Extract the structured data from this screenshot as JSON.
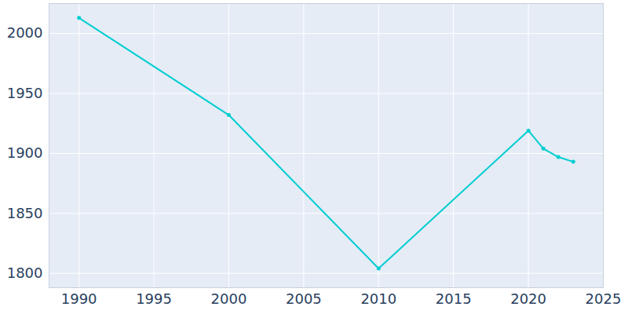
{
  "chart_data": {
    "type": "line",
    "x": [
      1990,
      2000,
      2010,
      2020,
      2021,
      2022,
      2023
    ],
    "values": [
      2013,
      1932,
      1804,
      1919,
      1904,
      1897,
      1893
    ],
    "color": "#00ced1",
    "marker": "circle",
    "xlim": [
      1988,
      2025
    ],
    "xticks": [
      1990,
      1995,
      2000,
      2005,
      2010,
      2015,
      2020,
      2025
    ],
    "ylim": [
      1788,
      2025
    ],
    "yticks": [
      1800,
      1850,
      1900,
      1950,
      2000
    ],
    "grid": true
  }
}
